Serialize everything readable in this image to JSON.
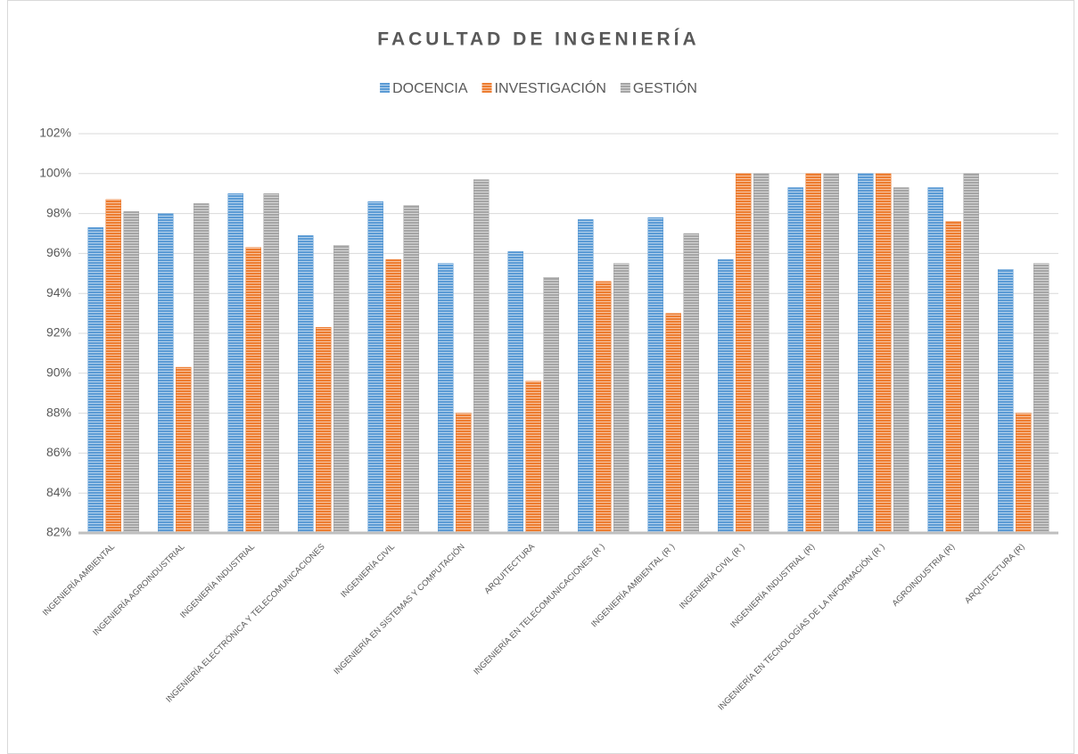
{
  "chart_data": {
    "type": "bar",
    "title": "FACULTAD DE INGENIERÍA",
    "categories": [
      "INGENIERÍA AMBIENTAL",
      "INGENIERÍA AGROINDUSTRIAL",
      "INGENIERÍA INDUSTRIAL",
      "INGENIERÍA ELECTRÓNICA Y TELECOMUNICACIONES",
      "INGENIERÍA CIVIL",
      "INGENIERÍA EN SISTEMAS Y COMPUTACIÓN",
      "ARQUITECTURA",
      "INGENIERÍA EN TELECOMUNICACIONES (R )",
      "INGENIERÍA AMBIENTAL (R )",
      "INGENIERÍA CIVIL (R )",
      "INGENIERÍA INDUSTRIAL (R)",
      "INGENIERÍA EN TECNOLOGÍAS DE LA INFORMACIÓN (R )",
      "AGROINDUSTRIA (R)",
      "ARQUITECTURA (R)"
    ],
    "series": [
      {
        "name": "DOCENCIA",
        "color": "#5b9bd5",
        "values": [
          97.3,
          98.0,
          99.0,
          96.9,
          98.6,
          95.5,
          96.1,
          97.7,
          97.8,
          95.7,
          99.3,
          100,
          99.3,
          95.2
        ]
      },
      {
        "name": "INVESTIGACIÓN",
        "color": "#ed7d31",
        "values": [
          98.7,
          90.3,
          96.3,
          92.3,
          95.7,
          88.0,
          89.6,
          94.6,
          93.0,
          100,
          100,
          100,
          97.6,
          88.0
        ]
      },
      {
        "name": "GESTIÓN",
        "color": "#a5a5a5",
        "values": [
          98.1,
          98.5,
          99.0,
          96.4,
          98.4,
          99.7,
          94.8,
          95.5,
          97.0,
          100,
          100,
          99.3,
          100,
          95.5
        ]
      }
    ],
    "ylim": [
      82,
      102
    ],
    "yticks": [
      {
        "value": 82,
        "label": "82%"
      },
      {
        "value": 84,
        "label": "84%"
      },
      {
        "value": 86,
        "label": "86%"
      },
      {
        "value": 88,
        "label": "88%"
      },
      {
        "value": 90,
        "label": "90%"
      },
      {
        "value": 92,
        "label": "92%"
      },
      {
        "value": 94,
        "label": "94%"
      },
      {
        "value": 96,
        "label": "96%"
      },
      {
        "value": 98,
        "label": "98%"
      },
      {
        "value": 100,
        "label": "100%"
      },
      {
        "value": 102,
        "label": "102%"
      }
    ],
    "grid": true,
    "legend": "top"
  }
}
